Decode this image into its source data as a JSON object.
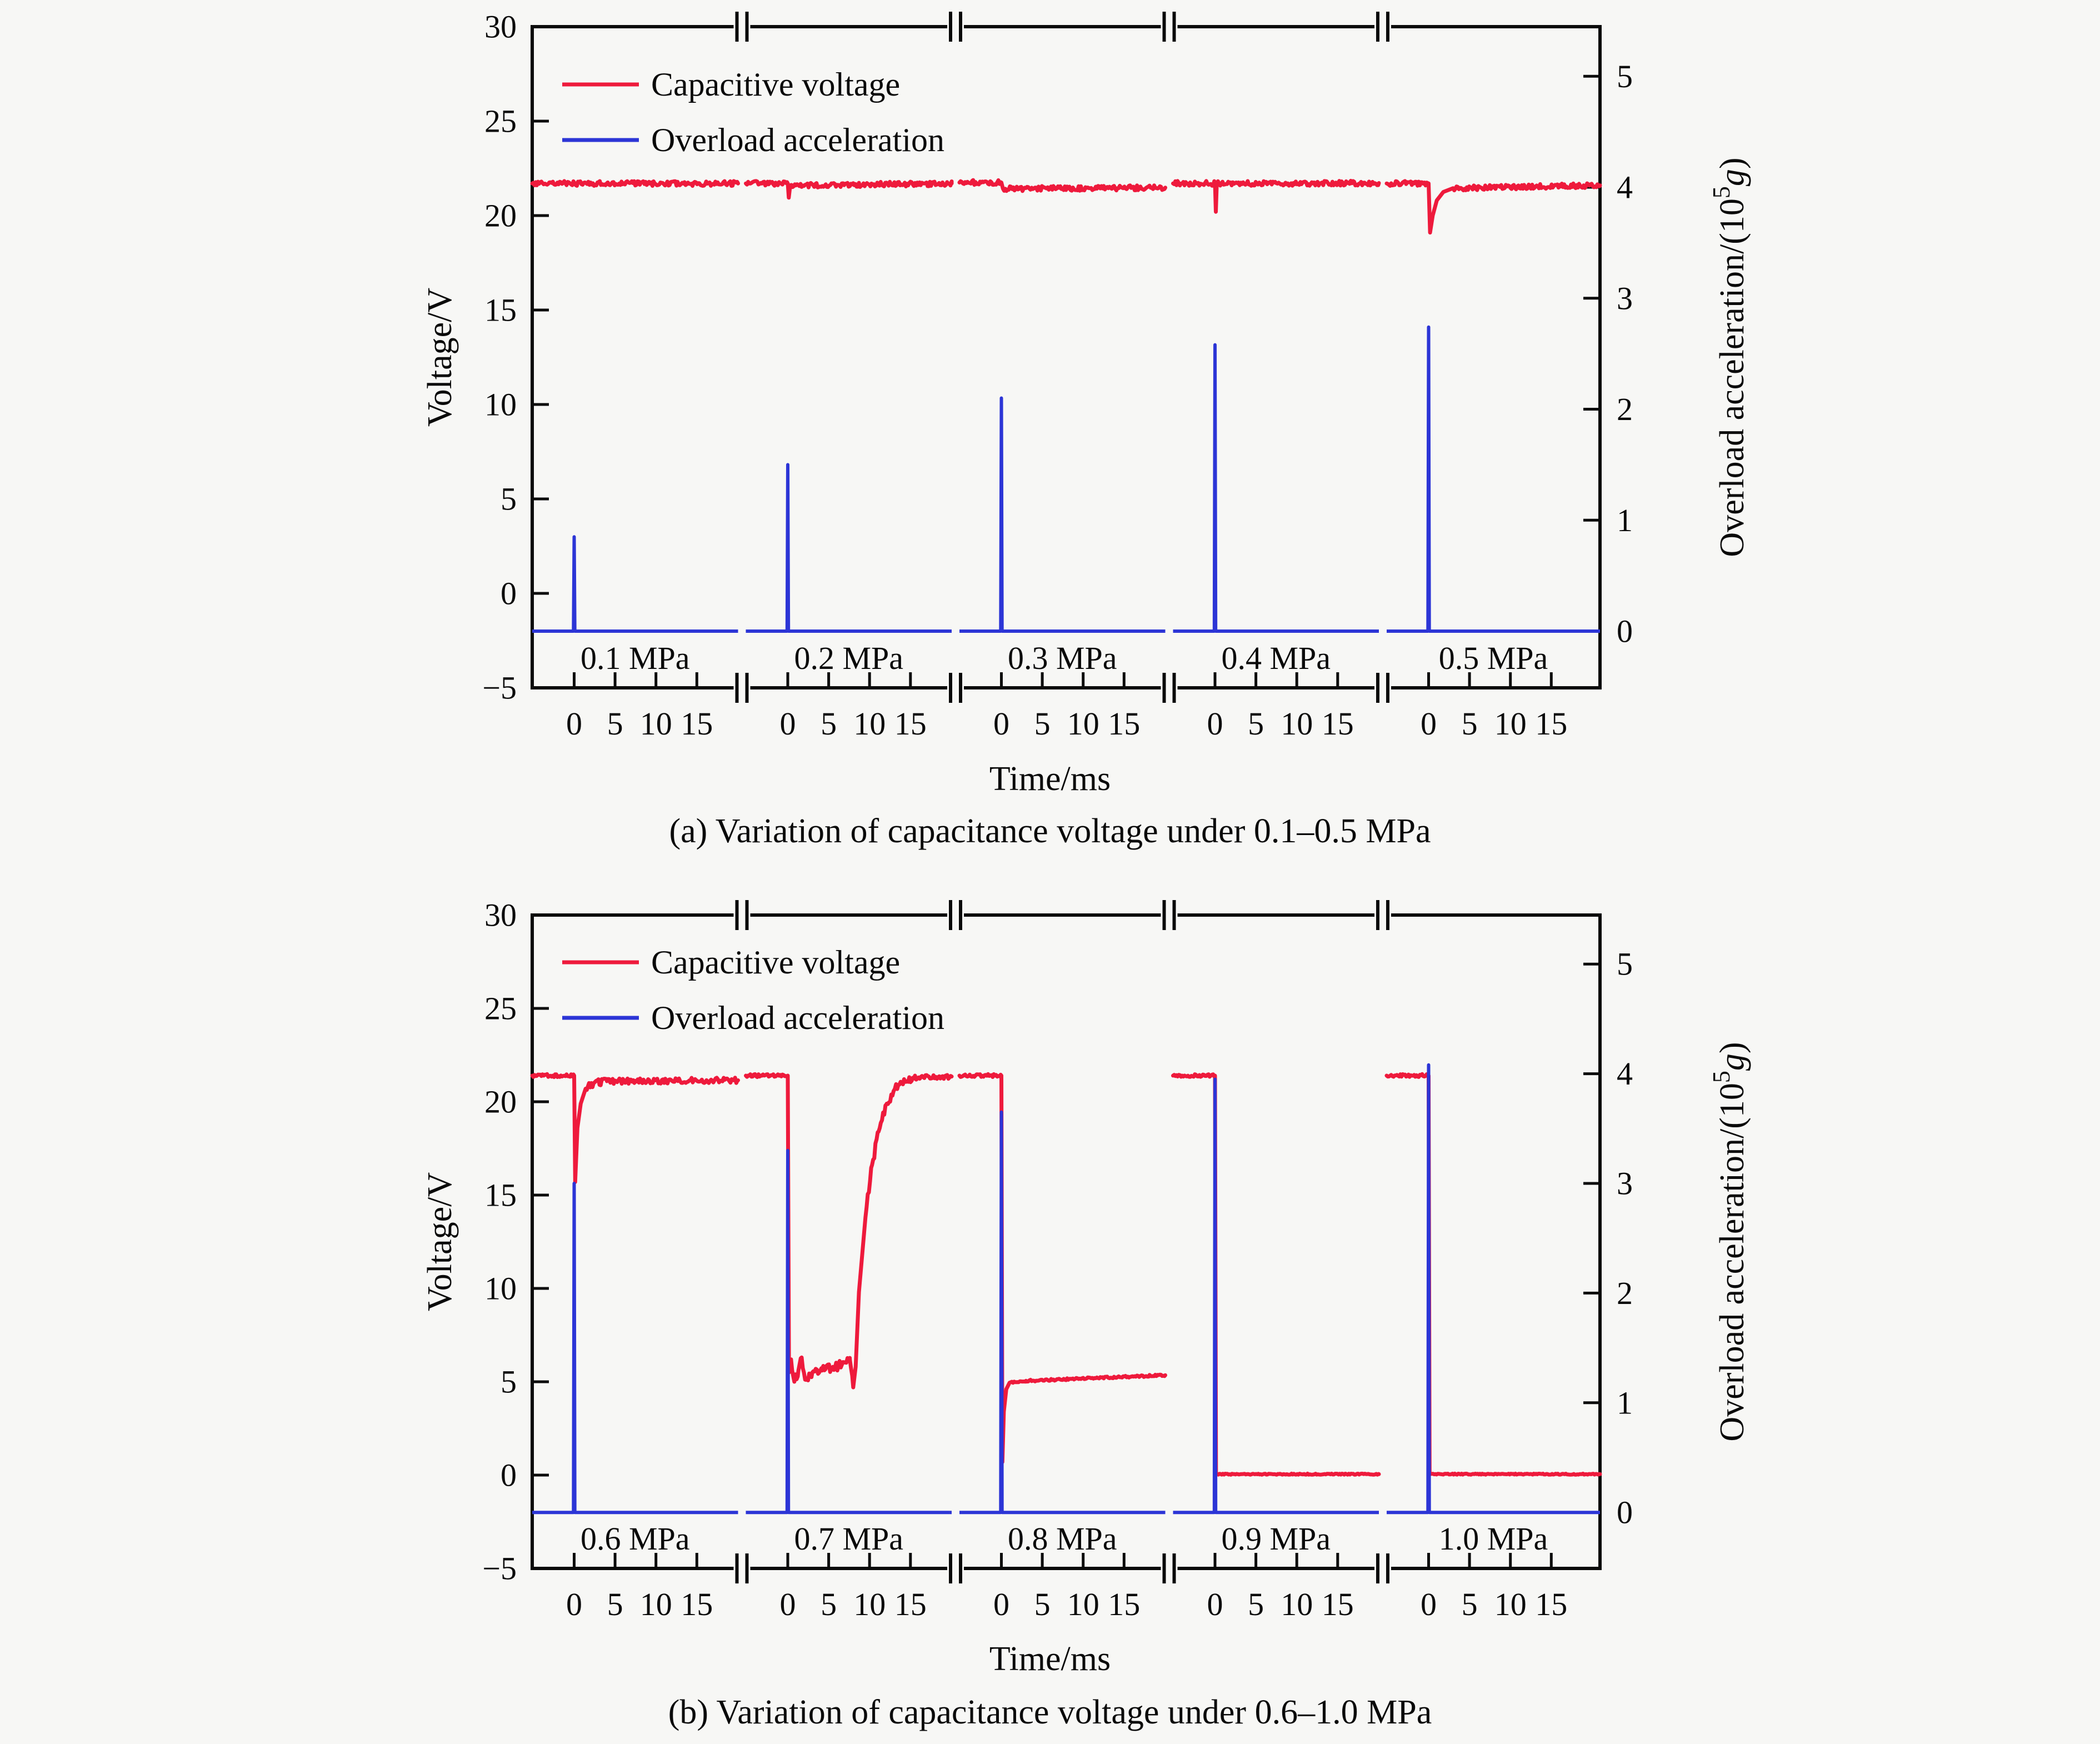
{
  "figure": {
    "background": "#f7f7f5",
    "type_note": "dual-axis broken-x line chart, two stacked panels"
  },
  "chart_data": [
    {
      "id": "a",
      "type": "line",
      "caption": "(a) Variation of capacitance voltage under 0.1–0.5 MPa",
      "xlabel": "Time/ms",
      "ylabel_left": "Voltage/V",
      "ylabel_right": {
        "pre": "Overload acceleration/(10",
        "sup": "5",
        "it": "g",
        "post": ")"
      },
      "legend": [
        "Capacitive voltage",
        "Overload acceleration"
      ],
      "colors": {
        "voltage": "#ee1a3c",
        "acceleration": "#2c35d6",
        "axis": "#0a0a0a"
      },
      "y_left": {
        "min": -5,
        "max": 30,
        "ticks": [
          30,
          25,
          20,
          15,
          10,
          5,
          0,
          -5
        ],
        "labels": [
          "30",
          "25",
          "20",
          "15",
          "10",
          "5",
          "0",
          "−5"
        ]
      },
      "y_right": {
        "ticks": [
          5,
          4,
          3,
          2,
          1,
          0
        ],
        "labels": [
          "5",
          "4",
          "3",
          "2",
          "1",
          "0"
        ],
        "volts_per_unit": 5.875,
        "zero_at_volt": -2
      },
      "x_ticks": [
        0,
        5,
        10,
        15
      ],
      "x_tick_labels": [
        "0",
        "5",
        "10",
        "15"
      ],
      "x_range_per_segment": [
        -5.1,
        21
      ],
      "accel_baseline": 0,
      "segments": [
        {
          "label": "0.1 MPa",
          "accel_peak": 0.85,
          "voltage": [
            [
              -5.2,
              21.7,
              0.13
            ],
            [
              21,
              21.7
            ]
          ]
        },
        {
          "label": "0.2 MPa",
          "accel_peak": 1.5,
          "voltage": [
            [
              -5.2,
              21.7,
              0.13
            ],
            [
              0,
              21.7
            ],
            [
              0.12,
              20.95
            ],
            [
              0.3,
              21.6,
              0.13
            ],
            [
              21,
              21.7
            ]
          ]
        },
        {
          "label": "0.3 MPa",
          "accel_peak": 2.1,
          "voltage": [
            [
              -5.2,
              21.75,
              0.13
            ],
            [
              0,
              21.75
            ],
            [
              0.2,
              21.42,
              0.13
            ],
            [
              21,
              21.48
            ]
          ]
        },
        {
          "label": "0.4 MPa",
          "accel_peak": 2.58,
          "voltage": [
            [
              -5.2,
              21.7,
              0.13
            ],
            [
              0,
              21.7
            ],
            [
              0.1,
              20.2
            ],
            [
              0.22,
              21.7,
              0.13
            ],
            [
              21,
              21.72
            ]
          ]
        },
        {
          "label": "0.5 MPa",
          "accel_peak": 2.74,
          "voltage": [
            [
              -5.2,
              21.7,
              0.13
            ],
            [
              0,
              21.7
            ],
            [
              0.18,
              19.1
            ],
            [
              0.5,
              20.0
            ],
            [
              1.0,
              20.8
            ],
            [
              1.8,
              21.25
            ],
            [
              3,
              21.45,
              0.13
            ],
            [
              21,
              21.6
            ]
          ]
        }
      ]
    },
    {
      "id": "b",
      "type": "line",
      "caption": "(b) Variation of capacitance voltage under 0.6–1.0 MPa",
      "xlabel": "Time/ms",
      "ylabel_left": "Voltage/V",
      "ylabel_right": {
        "pre": "Overload acceleration/(10",
        "sup": "5",
        "it": "g",
        "post": ")"
      },
      "legend": [
        "Capacitive voltage",
        "Overload acceleration"
      ],
      "colors": {
        "voltage": "#ee1a3c",
        "acceleration": "#2c35d6",
        "axis": "#0a0a0a"
      },
      "y_left": {
        "min": -5,
        "max": 30,
        "ticks": [
          30,
          25,
          20,
          15,
          10,
          5,
          0,
          -5
        ],
        "labels": [
          "30",
          "25",
          "20",
          "15",
          "10",
          "5",
          "0",
          "−5"
        ]
      },
      "y_right": {
        "ticks": [
          5,
          4,
          3,
          2,
          1,
          0
        ],
        "labels": [
          "5",
          "4",
          "3",
          "2",
          "1",
          "0"
        ],
        "volts_per_unit": 5.875,
        "zero_at_volt": -2
      },
      "x_ticks": [
        0,
        5,
        10,
        15
      ],
      "x_tick_labels": [
        "0",
        "5",
        "10",
        "15"
      ],
      "x_range_per_segment": [
        -5.1,
        21
      ],
      "accel_baseline": 0,
      "segments": [
        {
          "label": "0.6 MPa",
          "accel_peak": 3.0,
          "voltage": [
            [
              -5.2,
              21.4,
              0.08
            ],
            [
              0,
              21.4
            ],
            [
              0.12,
              15.7
            ],
            [
              0.4,
              18.6
            ],
            [
              0.8,
              19.9
            ],
            [
              1.4,
              20.7,
              0.2
            ],
            [
              2.4,
              21.0,
              0.18
            ],
            [
              4,
              21.1,
              0.15
            ],
            [
              21,
              21.15
            ]
          ]
        },
        {
          "label": "0.7 MPa",
          "accel_peak": 3.3,
          "voltage": [
            [
              -5.2,
              21.4,
              0.08
            ],
            [
              0,
              21.4
            ],
            [
              0.15,
              5.5
            ],
            [
              0.4,
              6.2,
              0.3
            ],
            [
              0.8,
              5.0,
              0.3
            ],
            [
              1.3,
              5.6,
              0.3
            ],
            [
              1.7,
              6.3,
              0.3
            ],
            [
              2.2,
              5.1,
              0.3
            ],
            [
              3,
              5.5,
              0.25
            ],
            [
              4.2,
              5.6,
              0.25
            ],
            [
              5.5,
              5.8,
              0.25
            ],
            [
              6.6,
              5.9,
              0.25
            ],
            [
              7.6,
              6.15,
              0.2
            ],
            [
              8.0,
              4.7
            ],
            [
              8.3,
              5.8
            ],
            [
              8.7,
              9.8
            ],
            [
              9.5,
              13.8,
              0.3
            ],
            [
              10.3,
              16.6,
              0.3
            ],
            [
              11.1,
              18.4,
              0.3
            ],
            [
              12.1,
              19.9,
              0.25
            ],
            [
              13.1,
              20.7,
              0.2
            ],
            [
              14.3,
              21.1,
              0.15
            ],
            [
              16,
              21.3,
              0.12
            ],
            [
              21,
              21.35
            ]
          ]
        },
        {
          "label": "0.8 MPa",
          "accel_peak": 3.65,
          "voltage": [
            [
              -5.2,
              21.4,
              0.08
            ],
            [
              0,
              21.4
            ],
            [
              0.12,
              0.7
            ],
            [
              0.3,
              3.4
            ],
            [
              0.6,
              4.6
            ],
            [
              1.0,
              4.95,
              0.05
            ],
            [
              3,
              5.05,
              0.05
            ],
            [
              21,
              5.35
            ]
          ]
        },
        {
          "label": "0.9 MPa",
          "accel_peak": 3.95,
          "voltage": [
            [
              -5.2,
              21.4,
              0.08
            ],
            [
              0,
              21.4
            ],
            [
              0.12,
              0.05,
              0.03
            ],
            [
              21,
              0.05
            ]
          ]
        },
        {
          "label": "1.0 MPa",
          "accel_peak": 4.08,
          "voltage": [
            [
              -5.2,
              21.4,
              0.08
            ],
            [
              0,
              21.4
            ],
            [
              0.12,
              0.05,
              0.03
            ],
            [
              21,
              0.05
            ]
          ]
        }
      ]
    }
  ]
}
